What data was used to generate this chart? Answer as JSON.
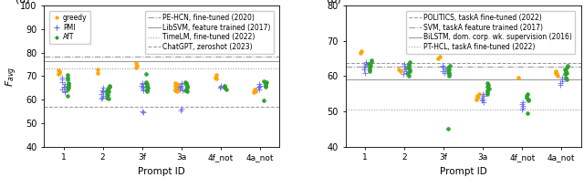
{
  "panel_a": {
    "ylabel": "$F_{avg}$",
    "xlabel": "Prompt ID",
    "xlabels": [
      "1",
      "2",
      "3f",
      "3a",
      "4f_not",
      "4a_not"
    ],
    "ylim": [
      40,
      100
    ],
    "yticks": [
      40,
      50,
      60,
      70,
      80,
      90,
      100
    ],
    "hlines": [
      {
        "y": 78.2,
        "style": "dashdot",
        "color": "#999999",
        "label": "PE-HCN, fine-tuned (2020)"
      },
      {
        "y": 76.3,
        "style": "solid",
        "color": "#999999",
        "label": "LibSVM, feature trained (2017)"
      },
      {
        "y": 73.4,
        "style": "dotted",
        "color": "#999999",
        "label": "TimeLM, fine-tuned (2022)"
      },
      {
        "y": 57.0,
        "style": "dashed",
        "color": "#999999",
        "label": "ChatGPT, zeroshot (2023)"
      }
    ],
    "greedy": {
      "1": [
        72.5,
        72.0,
        71.5,
        71.0
      ],
      "2": [
        73.0,
        71.5
      ],
      "3f": [
        75.5,
        74.5,
        73.5
      ],
      "3a": [
        67.0,
        66.5,
        66.0,
        65.5,
        65.0,
        64.5,
        64.0,
        63.5
      ],
      "4f_not": [
        70.5,
        69.5,
        69.0
      ],
      "4a_not": [
        64.5,
        64.0,
        63.5,
        63.0
      ]
    },
    "pmi": {
      "1": [
        69.5,
        68.5,
        67.5,
        66.5,
        65.5,
        65.0,
        64.5,
        63.5,
        63.0
      ],
      "2": [
        65.0,
        64.0,
        63.5,
        63.0,
        62.5,
        61.5,
        61.0,
        60.5
      ],
      "3f": [
        67.0,
        66.5,
        66.0,
        65.5,
        65.0,
        64.5,
        64.0,
        55.0,
        54.5
      ],
      "3a": [
        67.0,
        66.5,
        66.0,
        65.5,
        65.0,
        64.5,
        64.0,
        56.0,
        55.5
      ],
      "4f_not": [
        66.0,
        65.5,
        65.0
      ],
      "4a_not": [
        66.5,
        66.0,
        65.5,
        65.0,
        64.5
      ]
    },
    "aft": {
      "1": [
        70.5,
        69.5,
        68.5,
        67.0,
        66.5,
        66.0,
        65.5,
        65.0,
        64.5,
        61.5
      ],
      "2": [
        66.0,
        65.5,
        65.0,
        64.5,
        64.0,
        63.5,
        63.0,
        62.5,
        62.0,
        61.0,
        60.5
      ],
      "3f": [
        71.0,
        67.5,
        67.0,
        66.5,
        66.0,
        65.5,
        65.0,
        64.5,
        64.0,
        63.5
      ],
      "3a": [
        67.5,
        67.0,
        66.5,
        66.0,
        65.5,
        65.0,
        64.5,
        64.0,
        63.5
      ],
      "4f_not": [
        66.0,
        65.5,
        65.0,
        64.5
      ],
      "4a_not": [
        68.0,
        67.5,
        67.0,
        66.5,
        66.0,
        65.5,
        59.5
      ]
    }
  },
  "panel_b": {
    "xlabel": "Prompt ID",
    "xlabels": [
      "1",
      "2",
      "3f",
      "3a",
      "4f_not",
      "4a_not"
    ],
    "ylim": [
      40,
      80
    ],
    "yticks": [
      40,
      50,
      60,
      70,
      80
    ],
    "hlines": [
      {
        "y": 63.8,
        "style": "dashed",
        "color": "#999999",
        "label": "POLITICS, taskA fine-tuned (2022)"
      },
      {
        "y": 62.8,
        "style": "dashdot",
        "color": "#999999",
        "label": "SVM, taskA feature trained (2017)"
      },
      {
        "y": 59.0,
        "style": "solid",
        "color": "#999999",
        "label": "BiLSTM, dom. corp. wk. supervision (2016)"
      },
      {
        "y": 50.5,
        "style": "dotted",
        "color": "#999999",
        "label": "PT-HCL, taskA fine-tuned (2022)"
      }
    ],
    "greedy": {
      "1": [
        67.0,
        66.5
      ],
      "2": [
        62.0,
        61.5
      ],
      "3f": [
        65.5,
        65.0
      ],
      "3a": [
        55.0,
        54.5,
        54.0,
        53.5
      ],
      "4f_not": [
        59.5
      ],
      "4a_not": [
        61.5,
        61.0,
        60.5,
        60.0
      ]
    },
    "pmi": {
      "1": [
        64.0,
        63.5,
        63.0,
        62.5,
        62.0,
        61.0
      ],
      "2": [
        63.5,
        63.0,
        62.5,
        62.0,
        61.5,
        61.0,
        60.5
      ],
      "3f": [
        63.0,
        62.5,
        62.0,
        61.5,
        61.0
      ],
      "3a": [
        55.0,
        54.5,
        54.0,
        53.5,
        53.0,
        52.5
      ],
      "4f_not": [
        52.5,
        52.0,
        51.5,
        51.0,
        50.5
      ],
      "4a_not": [
        59.5,
        59.0,
        58.5,
        58.0,
        57.5
      ]
    },
    "aft": {
      "1": [
        64.5,
        64.0,
        63.5,
        63.0,
        62.5,
        62.0,
        61.5
      ],
      "2": [
        64.0,
        63.5,
        63.0,
        62.5,
        62.0,
        61.5,
        61.0,
        60.0
      ],
      "3f": [
        63.0,
        62.5,
        62.0,
        61.5,
        61.0,
        60.5,
        60.0,
        45.0
      ],
      "3a": [
        58.0,
        57.5,
        57.0,
        56.5,
        56.0,
        55.5,
        55.0
      ],
      "4f_not": [
        55.0,
        54.5,
        54.0,
        53.5,
        53.0,
        49.5
      ],
      "4a_not": [
        63.0,
        62.5,
        62.0,
        61.5,
        61.0,
        60.5,
        59.5,
        59.0
      ]
    }
  },
  "colors": {
    "greedy": "#FFA500",
    "pmi": "#6666EE",
    "aft": "#2ca02c"
  },
  "legend_a_markers": [
    {
      "label": "greedy",
      "marker": "o",
      "color": "#FFA500"
    },
    {
      "label": "PMI",
      "marker": "+",
      "color": "#6666EE"
    },
    {
      "label": "AfT",
      "marker": "o",
      "color": "#2ca02c"
    }
  ],
  "legend_a_lines": [
    {
      "label": "PE-HCN, fine-tuned (2020)",
      "style": "dashdot"
    },
    {
      "label": "LibSVM, feature trained (2017)",
      "style": "solid"
    },
    {
      "label": "TimeLM, fine-tuned (2022)",
      "style": "dotted"
    },
    {
      "label": "ChatGPT, zeroshot (2023)",
      "style": "dashed"
    }
  ],
  "legend_b_lines": [
    {
      "label": "POLITICS, taskA fine-tuned (2022)",
      "style": "dashed"
    },
    {
      "label": "SVM, taskA feature trained (2017)",
      "style": "dashdot"
    },
    {
      "label": "BiLSTM, dom. corp. wk. supervision (2016)",
      "style": "solid"
    },
    {
      "label": "PT-HCL, taskA fine-tuned (2022)",
      "style": "dotted"
    }
  ]
}
